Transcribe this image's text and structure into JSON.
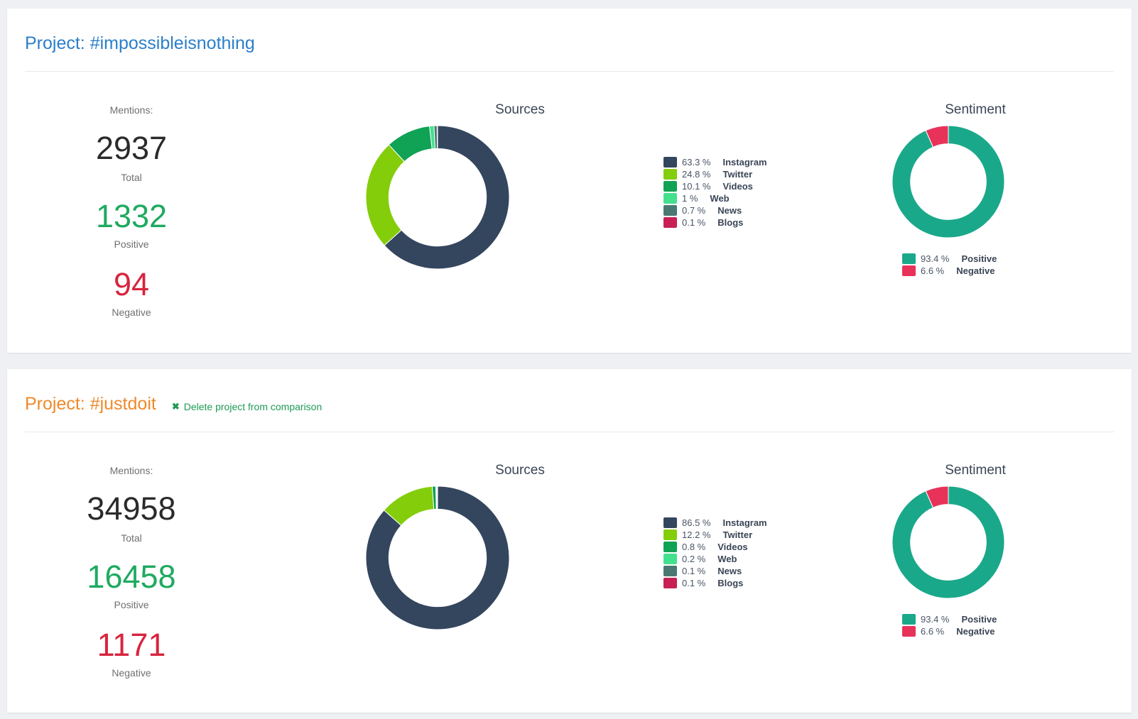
{
  "projects": [
    {
      "title": "Project: #impossibleisnothing",
      "title_color": "#2b7fc9",
      "delete_link": "",
      "mentions": {
        "label": "Mentions:",
        "total": "2937",
        "total_label": "Total",
        "positive": "1332",
        "positive_label": "Positive",
        "negative": "94",
        "negative_label": "Negative"
      },
      "sources": {
        "title": "Sources",
        "items": [
          {
            "pct": "63.3 %",
            "name": "Instagram",
            "value": 63.3,
            "color": "#34465e"
          },
          {
            "pct": "24.8 %",
            "name": "Twitter",
            "value": 24.8,
            "color": "#84cd0b"
          },
          {
            "pct": "10.1 %",
            "name": "Videos",
            "value": 10.1,
            "color": "#10a255"
          },
          {
            "pct": "1 %",
            "name": "Web",
            "value": 1.0,
            "color": "#43e08e"
          },
          {
            "pct": "0.7 %",
            "name": "News",
            "value": 0.7,
            "color": "#4a7873"
          },
          {
            "pct": "0.1 %",
            "name": "Blogs",
            "value": 0.1,
            "color": "#c81f55"
          }
        ]
      },
      "sentiment": {
        "title": "Sentiment",
        "items": [
          {
            "pct": "93.4 %",
            "name": "Positive",
            "value": 93.4,
            "color": "#1aa88a"
          },
          {
            "pct": "6.6 %",
            "name": "Negative",
            "value": 6.6,
            "color": "#e8325a"
          }
        ]
      }
    },
    {
      "title": "Project: #justdoit",
      "title_color": "#ee8a2c",
      "delete_link": "Delete project from comparison",
      "mentions": {
        "label": "Mentions:",
        "total": "34958",
        "total_label": "Total",
        "positive": "16458",
        "positive_label": "Positive",
        "negative": "1171",
        "negative_label": "Negative"
      },
      "sources": {
        "title": "Sources",
        "items": [
          {
            "pct": "86.5 %",
            "name": "Instagram",
            "value": 86.5,
            "color": "#34465e"
          },
          {
            "pct": "12.2 %",
            "name": "Twitter",
            "value": 12.2,
            "color": "#84cd0b"
          },
          {
            "pct": "0.8 %",
            "name": "Videos",
            "value": 0.8,
            "color": "#10a255"
          },
          {
            "pct": "0.2 %",
            "name": "Web",
            "value": 0.2,
            "color": "#43e08e"
          },
          {
            "pct": "0.1 %",
            "name": "News",
            "value": 0.1,
            "color": "#4a7873"
          },
          {
            "pct": "0.1 %",
            "name": "Blogs",
            "value": 0.1,
            "color": "#c81f55"
          }
        ]
      },
      "sentiment": {
        "title": "Sentiment",
        "items": [
          {
            "pct": "93.4 %",
            "name": "Positive",
            "value": 93.4,
            "color": "#1aa88a"
          },
          {
            "pct": "6.6 %",
            "name": "Negative",
            "value": 6.6,
            "color": "#e8325a"
          }
        ]
      }
    }
  ]
}
